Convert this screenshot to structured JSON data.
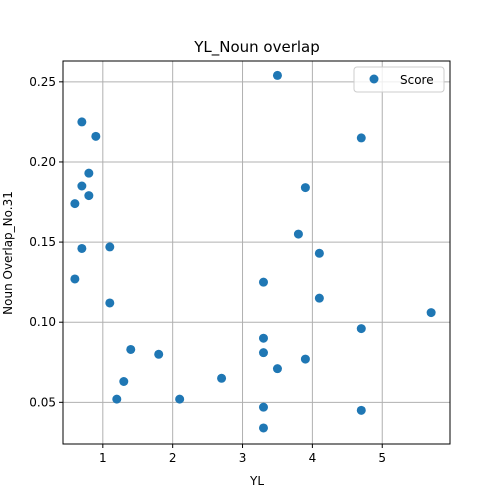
{
  "chart_data": {
    "type": "scatter",
    "title": "YL_Noun overlap",
    "xlabel": "YL",
    "ylabel": "Noun Overlap_No.31",
    "xlim": [
      0.43,
      5.97
    ],
    "ylim": [
      0.024,
      0.263
    ],
    "xticks": [
      1,
      2,
      3,
      4,
      5
    ],
    "yticks": [
      0.05,
      0.1,
      0.15,
      0.2,
      0.25
    ],
    "xtick_labels": [
      "1",
      "2",
      "3",
      "4",
      "5"
    ],
    "ytick_labels": [
      "0.05",
      "0.10",
      "0.15",
      "0.20",
      "0.25"
    ],
    "grid": true,
    "legend_position": "top-right",
    "colors": {
      "series": "#1f77b4",
      "grid": "#b0b0b0",
      "axis": "#000000"
    },
    "series": [
      {
        "name": "Score",
        "points": [
          {
            "x": 0.6,
            "y": 0.174
          },
          {
            "x": 0.6,
            "y": 0.127
          },
          {
            "x": 0.7,
            "y": 0.225
          },
          {
            "x": 0.7,
            "y": 0.185
          },
          {
            "x": 0.7,
            "y": 0.146
          },
          {
            "x": 0.8,
            "y": 0.193
          },
          {
            "x": 0.8,
            "y": 0.179
          },
          {
            "x": 0.9,
            "y": 0.216
          },
          {
            "x": 1.1,
            "y": 0.147
          },
          {
            "x": 1.1,
            "y": 0.112
          },
          {
            "x": 1.2,
            "y": 0.052
          },
          {
            "x": 1.3,
            "y": 0.063
          },
          {
            "x": 1.4,
            "y": 0.083
          },
          {
            "x": 1.8,
            "y": 0.08
          },
          {
            "x": 2.1,
            "y": 0.052
          },
          {
            "x": 2.7,
            "y": 0.065
          },
          {
            "x": 3.3,
            "y": 0.125
          },
          {
            "x": 3.3,
            "y": 0.09
          },
          {
            "x": 3.3,
            "y": 0.081
          },
          {
            "x": 3.3,
            "y": 0.047
          },
          {
            "x": 3.3,
            "y": 0.034
          },
          {
            "x": 3.5,
            "y": 0.254
          },
          {
            "x": 3.5,
            "y": 0.071
          },
          {
            "x": 3.8,
            "y": 0.155
          },
          {
            "x": 3.9,
            "y": 0.184
          },
          {
            "x": 3.9,
            "y": 0.077
          },
          {
            "x": 4.1,
            "y": 0.143
          },
          {
            "x": 4.1,
            "y": 0.115
          },
          {
            "x": 4.7,
            "y": 0.215
          },
          {
            "x": 4.7,
            "y": 0.096
          },
          {
            "x": 4.7,
            "y": 0.045
          },
          {
            "x": 5.7,
            "y": 0.106
          }
        ]
      }
    ]
  }
}
